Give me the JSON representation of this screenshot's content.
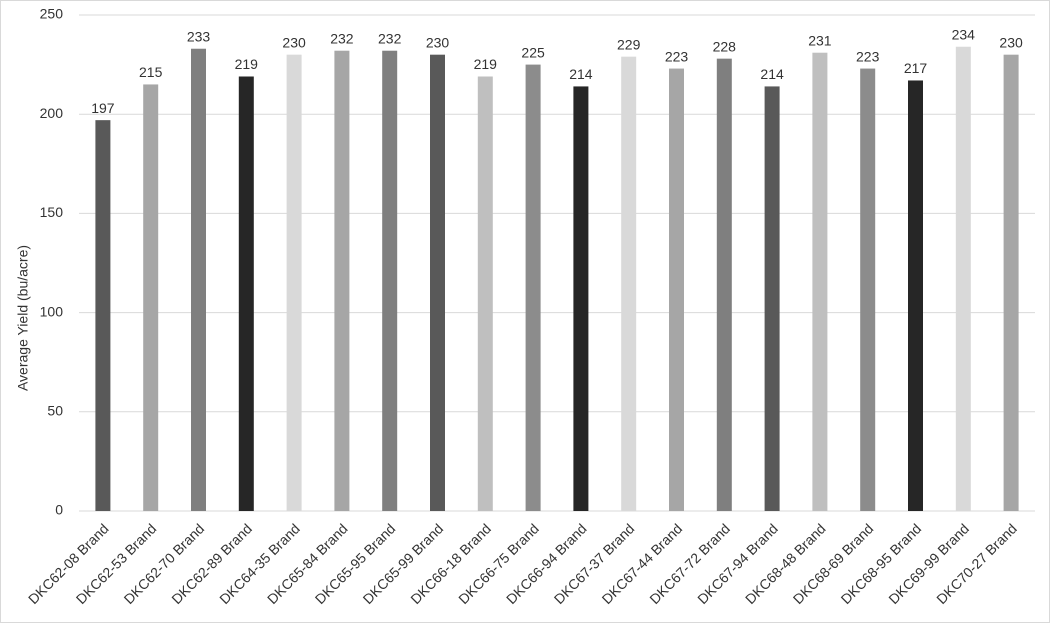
{
  "chart_data": {
    "type": "bar",
    "y_label": "Average Yield (bu/acre)",
    "categories": [
      "DKC62-08 Brand",
      "DKC62-53 Brand",
      "DKC62-70 Brand",
      "DKC62-89 Brand",
      "DKC64-35 Brand",
      "DKC65-84 Brand",
      "DKC65-95 Brand",
      "DKC65-99 Brand",
      "DKC66-18 Brand",
      "DKC66-75 Brand",
      "DKC66-94 Brand",
      "DKC67-37 Brand",
      "DKC67-44 Brand",
      "DKC67-72 Brand",
      "DKC67-94 Brand",
      "DKC68-48 Brand",
      "DKC68-69 Brand",
      "DKC68-95 Brand",
      "DKC69-99 Brand",
      "DKC70-27 Brand"
    ],
    "values": [
      197,
      215,
      233,
      219,
      230,
      232,
      232,
      230,
      219,
      225,
      214,
      229,
      223,
      228,
      214,
      231,
      223,
      217,
      234,
      230
    ],
    "colors": [
      "#595959",
      "#a6a6a6",
      "#7f7f7f",
      "#262626",
      "#d9d9d9",
      "#a6a6a6",
      "#7f7f7f",
      "#595959",
      "#bfbfbf",
      "#8c8c8c",
      "#262626",
      "#d9d9d9",
      "#a6a6a6",
      "#7f7f7f",
      "#595959",
      "#bfbfbf",
      "#8c8c8c",
      "#262626",
      "#d9d9d9",
      "#a6a6a6"
    ],
    "ylim": [
      0,
      250
    ],
    "yticks": [
      0,
      50,
      100,
      150,
      200,
      250
    ],
    "grid": true
  }
}
